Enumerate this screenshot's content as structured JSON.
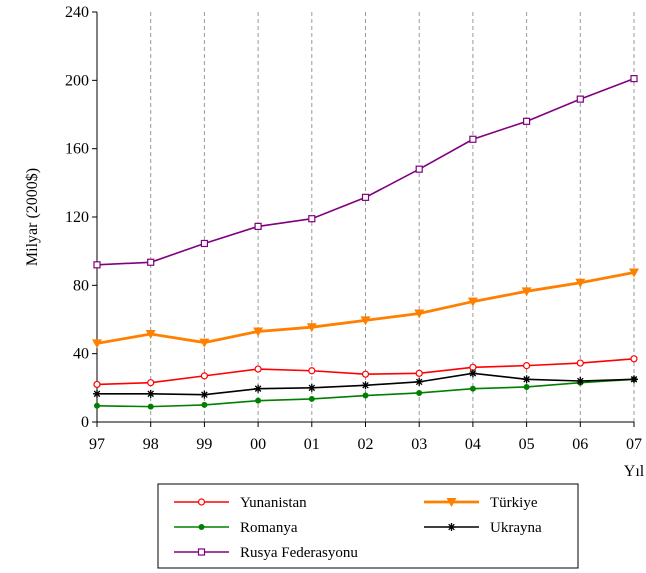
{
  "chart_data": {
    "type": "line",
    "title": "",
    "xlabel": "Yıl",
    "ylabel": "Milyar (2000$)",
    "categories": [
      "97",
      "98",
      "99",
      "00",
      "01",
      "02",
      "03",
      "04",
      "05",
      "06",
      "07"
    ],
    "ylim": [
      0,
      240
    ],
    "yticks": [
      0,
      40,
      80,
      120,
      160,
      200,
      240
    ],
    "grid": "vertical-dashed",
    "legend_position": "bottom",
    "series": [
      {
        "name": "Yunanistan",
        "color": "#ff0000",
        "marker": "open-circle",
        "values": [
          22,
          23,
          27,
          31,
          30,
          28,
          28.5,
          32,
          33,
          34.5,
          37
        ]
      },
      {
        "name": "Türkiye",
        "color": "#ff8000",
        "marker": "filled-triangle-down",
        "values": [
          46,
          51.5,
          46.5,
          53,
          55.5,
          59.5,
          63.5,
          70.5,
          76.5,
          81.5,
          87.5
        ]
      },
      {
        "name": "Romanya",
        "color": "#008000",
        "marker": "filled-circle",
        "values": [
          9.5,
          9,
          10,
          12.5,
          13.5,
          15.5,
          17,
          19.5,
          20.5,
          23,
          25
        ]
      },
      {
        "name": "Ukrayna",
        "color": "#000000",
        "marker": "star",
        "values": [
          16.5,
          16.5,
          16,
          19.5,
          20,
          21.5,
          23.5,
          28.5,
          25,
          24,
          25
        ]
      },
      {
        "name": "Rusya Federasyonu",
        "color": "#800080",
        "marker": "open-square",
        "values": [
          92,
          93.5,
          104.5,
          114.5,
          119,
          131.5,
          148,
          165.5,
          176,
          189,
          201
        ]
      }
    ]
  }
}
